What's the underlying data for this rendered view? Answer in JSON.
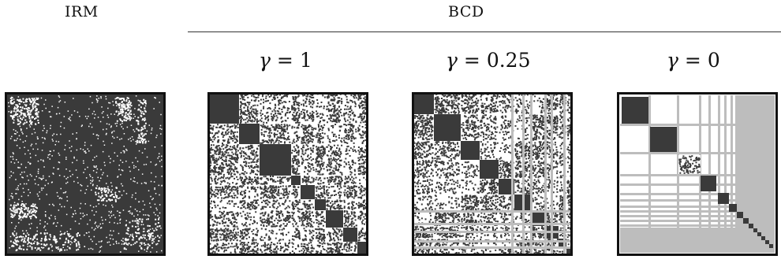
{
  "header": {
    "left_label": "IRM",
    "right_label": "BCD"
  },
  "panels": [
    {
      "id": "irm",
      "gamma_symbol": "",
      "gamma_value": ""
    },
    {
      "id": "bcd-1",
      "gamma_symbol": "γ",
      "gamma_eq": "=",
      "gamma_value": "1"
    },
    {
      "id": "bcd-025",
      "gamma_symbol": "γ",
      "gamma_eq": "=",
      "gamma_value": "0.25"
    },
    {
      "id": "bcd-0",
      "gamma_symbol": "γ",
      "gamma_eq": "=",
      "gamma_value": "0"
    }
  ],
  "colors": {
    "dense": "#3a3a3a",
    "sparse": "#ffffff",
    "gap": "#bdbdbd",
    "frame": "#111111"
  }
}
